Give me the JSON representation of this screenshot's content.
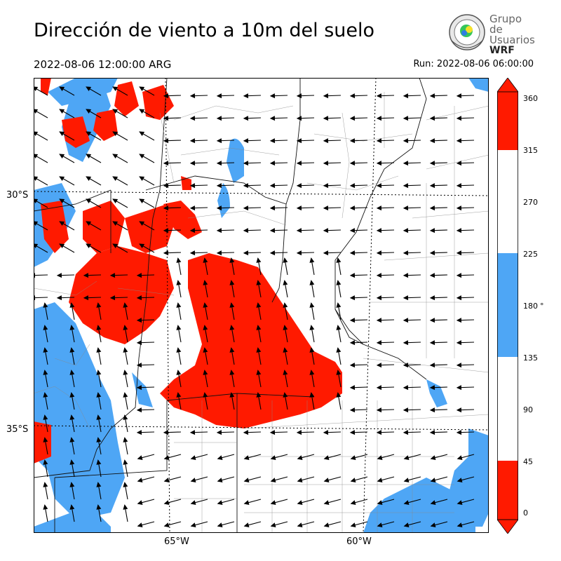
{
  "header": {
    "title": "Dirección de viento a 10m del suelo",
    "valid_time": "2022-08-06 12:00:00 ARG",
    "run_label": "Run: 2022-08-06 06:00:00"
  },
  "logo": {
    "line1": "Grupo de",
    "line2": "Usuarios",
    "line3": "WRF"
  },
  "axes": {
    "lat_labels": [
      "30°S",
      "35°S"
    ],
    "lon_labels": [
      "65°W",
      "60°W"
    ]
  },
  "colorbar": {
    "ticks": [
      "360",
      "315",
      "270",
      "225",
      "180",
      "135",
      "90",
      "45",
      "0"
    ],
    "unit": "°",
    "colors": {
      "red": "#ff1a00",
      "white": "#ffffff",
      "blue": "#4ea6f5"
    }
  },
  "chart_data": {
    "type": "heatmap",
    "variable": "wind direction at 10 m",
    "units": "degrees",
    "color_levels": [
      {
        "range": [
          0,
          45
        ],
        "color": "#ff1a00"
      },
      {
        "range": [
          45,
          135
        ],
        "color": "#ffffff"
      },
      {
        "range": [
          135,
          225
        ],
        "color": "#4ea6f5"
      },
      {
        "range": [
          225,
          315
        ],
        "color": "#ffffff"
      },
      {
        "range": [
          315,
          360
        ],
        "color": "#ff1a00"
      }
    ],
    "grid": true,
    "xlabel": "",
    "ylabel": ""
  }
}
